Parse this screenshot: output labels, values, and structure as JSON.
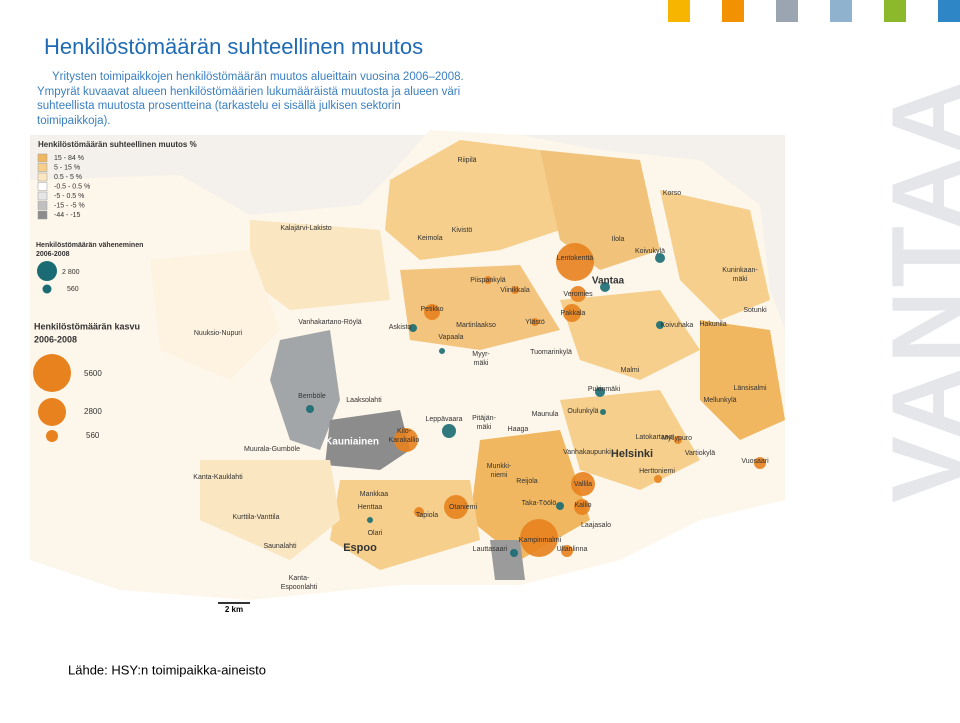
{
  "header": {
    "title": "Henkilöstömäärän suhteellinen muutos",
    "description": [
      "Yritysten toimipaikkojen henkilöstömäärän muutos alueittain vuosina 2006–2008.",
      "Ympyrät kuvaavat alueen henkilöstömäärien lukumääräistä muutosta ja alueen väri",
      "suhteellista muutosta prosentteina (tarkastelu ei sisällä julkisen sektorin",
      "toimipaikkoja)."
    ]
  },
  "brand": "VANTAA",
  "legend": {
    "classes_title": "Henkilöstömäärän suhteellinen muutos %",
    "classes": [
      "15 - 84 %",
      "5 - 15 %",
      "0.5 - 5 %",
      "-0.5 - 0.5 %",
      "-5 - 0.5 %",
      "-15 - -5 %",
      "-44 - -15"
    ],
    "decrease_title": [
      "Henkilöstömäärän väheneminen",
      "2006-2008"
    ],
    "decrease_sizes": [
      "2 800",
      "560"
    ],
    "increase_title": [
      "Henkilöstömäärän kasvu",
      "2006-2008"
    ],
    "increase_sizes": [
      "5600",
      "2800",
      "560"
    ]
  },
  "map": {
    "scale": "2 km",
    "labels": [
      "Riipilä",
      "Korso",
      "Kalajärvi-Lakisto",
      "Keimola",
      "Kivistö",
      "Ilola",
      "Koivukylä",
      "Lentokenttä",
      "Vantaa",
      "Kuninkaan-",
      "mäki",
      "Piispankylä",
      "Viinikkala",
      "Veromies",
      "Petikko",
      "Pakkala",
      "Sotunki",
      "Nuuksio-Nupuri",
      "Vanhakartano-Röylä",
      "Askisto",
      "Martinlaakso",
      "Ylästö",
      "Koivuhaka",
      "Hakunila",
      "Vapaala",
      "Myyr-",
      "mäki",
      "Tuomarinkylä",
      "Malmi",
      "Pukinmäki",
      "Länsisalmi",
      "Bemböle",
      "Laaksolahti",
      "Mellunkylä",
      "Leppävaara",
      "Pitäjän-",
      "mäki",
      "Maunula",
      "Oulunkylä",
      "Kilo-",
      "Karakallio",
      "Kauniainen",
      "Haaga",
      "Latokartano",
      "Myllypuro",
      "Muurala-Gumböle",
      "Vanhakaupunki",
      "Helsinki",
      "Vartiokylä",
      "Vuosaari",
      "Herttoniemi",
      "Kanta-Kauklahti",
      "Munkki-",
      "niemi",
      "Reijola",
      "Vallila",
      "Mankkaa",
      "Henttaa",
      "Tapiola",
      "Otaniemi",
      "Taka-Töölö",
      "Kallio",
      "Kurttila-Vanttila",
      "Laajasalo",
      "Olari",
      "Saunalahti",
      "Espoo",
      "Kampinmalmi",
      "Ullanlinna",
      "Lauttasaari",
      "Kanta-",
      "Espoonlahti"
    ]
  },
  "footer": {
    "source": "Lähde: HSY:n toimipaikka-aineisto"
  }
}
